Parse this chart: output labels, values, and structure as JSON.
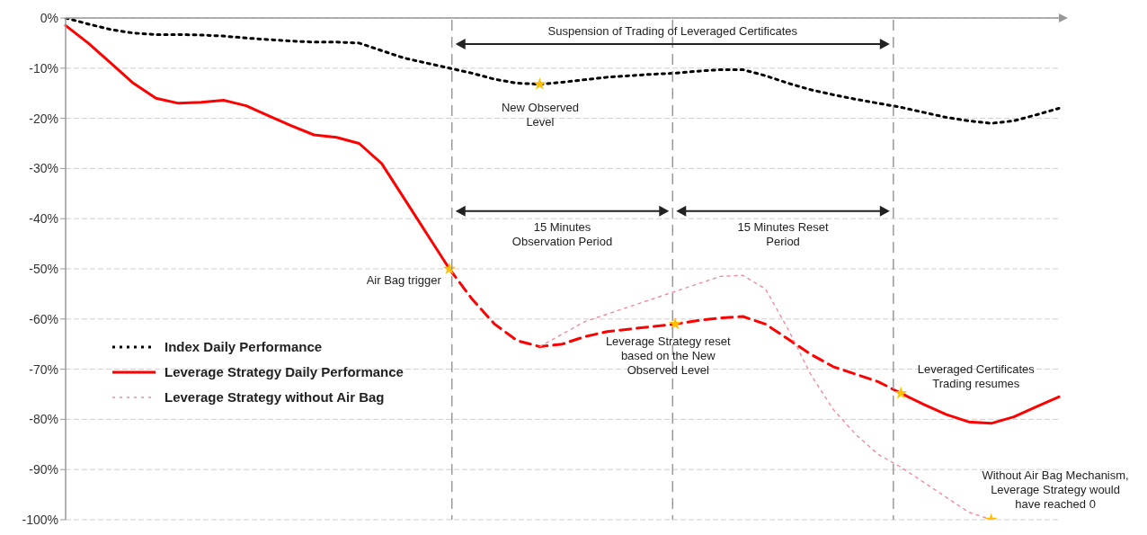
{
  "chart_data": {
    "type": "line",
    "categories": [
      null,
      null,
      null,
      null,
      null,
      null,
      null,
      null,
      null,
      null,
      null,
      null,
      null,
      null,
      null,
      null,
      null,
      null,
      null,
      null,
      null,
      null,
      null,
      null,
      null,
      null,
      null,
      null,
      null,
      null,
      null,
      null,
      null,
      null,
      null,
      null,
      null,
      null,
      null,
      null,
      null,
      null,
      null,
      null,
      null
    ],
    "ylim": [
      -100,
      0
    ],
    "yticks": [
      {
        "value": -100,
        "label": "-100%"
      },
      {
        "value": -90,
        "label": "-90%"
      },
      {
        "value": -80,
        "label": "-80%"
      },
      {
        "value": -70,
        "label": "-70%"
      },
      {
        "value": -60,
        "label": "-60%"
      },
      {
        "value": -50,
        "label": "-50%"
      },
      {
        "value": -40,
        "label": "-40%"
      },
      {
        "value": -30,
        "label": "-30%"
      },
      {
        "value": -20,
        "label": "-20%"
      },
      {
        "value": -10,
        "label": "-10%"
      },
      {
        "value": 0,
        "label": "0%"
      }
    ],
    "grid": "y",
    "legend": "left",
    "series": [
      {
        "name": "Index Daily Performance",
        "color": "#000000",
        "line_style": "dotted",
        "values": [
          0,
          -1.2,
          -2.3,
          -3,
          -3.3,
          -3.3,
          -3.4,
          -3.6,
          -4,
          -4.3,
          -4.6,
          -4.8,
          -4.8,
          -5,
          -6.5,
          -8,
          -9,
          -10,
          -11,
          -12.2,
          -13,
          -13.2,
          -12.8,
          -12.3,
          -11.8,
          -11.5,
          -11.2,
          -11,
          -10.6,
          -10.3,
          -10.3,
          -11.5,
          -13,
          -14.3,
          -15.3,
          -16.2,
          -17,
          -17.8,
          -18.8,
          -19.8,
          -20.5,
          -21,
          -20.5,
          -19.3,
          -18
        ]
      },
      {
        "name": "Leverage Strategy Daily Performance",
        "color": "#ff0000",
        "line_style": "solid",
        "values": [
          -1.5,
          -5,
          -9,
          -13,
          -16,
          -17,
          -16.8,
          -16.4,
          -17.5,
          -19.5,
          -21.5,
          -23.3,
          -23.8,
          -25,
          -29,
          -36,
          -43,
          -50,
          null,
          null,
          null,
          null,
          null,
          null,
          null,
          null,
          null,
          null,
          null,
          null,
          null,
          null,
          null,
          null,
          null,
          null,
          null,
          -74.8,
          -77,
          -79,
          -80.5,
          -80.8,
          -79.5,
          -77.5,
          -75.5
        ]
      },
      {
        "color": "#ff0000",
        "line_style": "dashed",
        "values": [
          null,
          null,
          null,
          null,
          null,
          null,
          null,
          null,
          null,
          null,
          null,
          null,
          null,
          null,
          null,
          null,
          null,
          -50,
          -56,
          -61,
          -64.3,
          -65.5,
          -65,
          -63.5,
          -62.5,
          -62,
          -61.5,
          -61,
          -60.3,
          -59.8,
          -59.5,
          -61,
          -64,
          -67,
          -69.5,
          -71,
          -72.5,
          -74.8,
          null,
          null,
          null,
          null,
          null,
          null,
          null
        ]
      },
      {
        "name": "Leverage Strategy without Air Bag",
        "color": "#f48a98",
        "line_style": "dotted",
        "values": [
          null,
          null,
          null,
          null,
          null,
          null,
          null,
          null,
          null,
          null,
          null,
          null,
          null,
          null,
          null,
          null,
          null,
          null,
          null,
          null,
          null,
          -65.5,
          -63,
          -60.5,
          -59,
          -57.5,
          -56,
          -54.5,
          -53,
          -51.5,
          -51.3,
          -54,
          -62,
          -71,
          -78,
          -83,
          -87,
          -89.5,
          -92.5,
          -95.5,
          -98.5,
          -100,
          null,
          null,
          null
        ]
      },
      {
        "type": "scatter",
        "color": "#ffc000",
        "marker": "star",
        "values": [
          null,
          null,
          null,
          null,
          null,
          null,
          null,
          null,
          null,
          null,
          null,
          null,
          null,
          null,
          null,
          null,
          null,
          -50,
          null,
          null,
          null,
          -13.2,
          null,
          null,
          null,
          null,
          null,
          -61,
          null,
          null,
          null,
          null,
          null,
          null,
          null,
          null,
          null,
          -74.8,
          null,
          null,
          null,
          -100,
          null,
          null,
          null
        ]
      }
    ],
    "annotations": [
      "Suspension of  Trading of Leveraged Certificates",
      "15 Minutes\nObservation Period",
      "15 Minutes Reset\nPeriod",
      "Air Bag trigger",
      "New Observed\nLevel",
      "Leverage Strategy reset\nbased on the New\nObserved Level",
      "Leveraged Certificates\nTrading resumes",
      "Without Air Bag Mechanism,\nLeverage Strategy would\nhave reached 0"
    ]
  }
}
